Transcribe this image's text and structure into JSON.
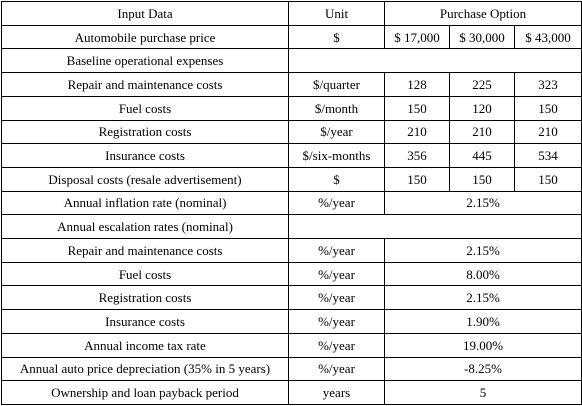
{
  "header": {
    "input_data": "Input Data",
    "unit": "Unit",
    "purchase_option": "Purchase Option"
  },
  "rows": {
    "price": {
      "label": "Automobile purchase price",
      "unit": "$",
      "values": [
        "$ 17,000",
        "$ 30,000",
        "$ 43,000"
      ]
    },
    "baseline_section": {
      "label": "Baseline operational expenses"
    },
    "repair": {
      "label": "Repair and maintenance costs",
      "unit": "$/quarter",
      "values": [
        "128",
        "225",
        "323"
      ]
    },
    "fuel": {
      "label": "Fuel costs",
      "unit": "$/month",
      "values": [
        "150",
        "120",
        "150"
      ]
    },
    "registration": {
      "label": "Registration costs",
      "unit": "$/year",
      "values": [
        "210",
        "210",
        "210"
      ]
    },
    "insurance": {
      "label": "Insurance costs",
      "unit": "$/six-months",
      "values": [
        "356",
        "445",
        "534"
      ]
    },
    "disposal": {
      "label": "Disposal costs (resale advertisement)",
      "unit": "$",
      "values": [
        "150",
        "150",
        "150"
      ]
    },
    "inflation": {
      "label": "Annual inflation rate (nominal)",
      "unit": "%/year",
      "value": "2.15%"
    },
    "escalation_section": {
      "label": "Annual escalation rates (nominal)"
    },
    "esc_repair": {
      "label": "Repair and maintenance costs",
      "unit": "%/year",
      "value": "2.15%"
    },
    "esc_fuel": {
      "label": "Fuel costs",
      "unit": "%/year",
      "value": "8.00%"
    },
    "esc_registration": {
      "label": "Registration costs",
      "unit": "%/year",
      "value": "2.15%"
    },
    "esc_insurance": {
      "label": "Insurance costs",
      "unit": "%/year",
      "value": "1.90%"
    },
    "income_tax": {
      "label": "Annual income tax rate",
      "unit": "%/year",
      "value": "19.00%"
    },
    "depreciation": {
      "label": "Annual auto price depreciation (35% in 5 years)",
      "unit": "%/year",
      "value": "-8.25%"
    },
    "ownership": {
      "label": "Ownership and loan payback period",
      "unit": "years",
      "value": "5"
    }
  }
}
